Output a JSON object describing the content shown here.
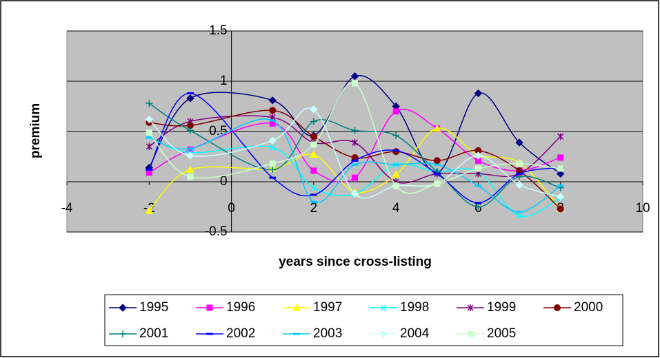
{
  "chart_data": {
    "type": "scatter-smooth",
    "x_label": "years since cross-listing",
    "y_label": "premium",
    "x": [
      -2,
      -1,
      1,
      2,
      3,
      4,
      5,
      6,
      7,
      8
    ],
    "xlim": [
      -4,
      10
    ],
    "xticks": [
      -4,
      -2,
      0,
      2,
      4,
      6,
      8,
      10
    ],
    "ylim": [
      -0.5,
      1.5
    ],
    "yticks": [
      -0.5,
      0,
      0.5,
      1,
      1.5
    ],
    "grid": true,
    "legend": "bottom",
    "series": [
      {
        "name": "1995",
        "color": "#000080",
        "marker": "diamond",
        "values": [
          0.14,
          0.83,
          0.81,
          0.46,
          1.05,
          0.75,
          0.09,
          0.88,
          0.39,
          0.08
        ]
      },
      {
        "name": "1996",
        "color": "#FF00FF",
        "marker": "square",
        "values": [
          0.09,
          0.32,
          0.58,
          0.11,
          0.04,
          0.7,
          0.53,
          0.21,
          0.11,
          0.24
        ]
      },
      {
        "name": "1997",
        "color": "#FFFF00",
        "marker": "triangle",
        "values": [
          -0.29,
          0.12,
          0.13,
          0.27,
          -0.1,
          0.07,
          0.53,
          0.27,
          0.19,
          -0.27
        ]
      },
      {
        "name": "1998",
        "color": "#00FFFF",
        "marker": "x",
        "values": [
          0.45,
          0.29,
          0.34,
          -0.06,
          -0.12,
          0.17,
          0.1,
          0.1,
          -0.34,
          -0.16
        ]
      },
      {
        "name": "1999",
        "color": "#800080",
        "marker": "asterisk",
        "values": [
          0.35,
          0.6,
          0.64,
          0.39,
          0.39,
          0.0,
          0.08,
          0.08,
          0.08,
          0.45
        ]
      },
      {
        "name": "2000",
        "color": "#800000",
        "marker": "circle",
        "values": [
          0.59,
          0.56,
          0.71,
          0.45,
          0.24,
          0.3,
          0.21,
          0.31,
          0.11,
          -0.27
        ]
      },
      {
        "name": "2001",
        "color": "#008080",
        "marker": "plus",
        "values": [
          0.78,
          0.51,
          0.12,
          0.6,
          0.51,
          0.46,
          0.1,
          -0.25,
          0.05,
          -0.06
        ]
      },
      {
        "name": "2002",
        "color": "#0000FF",
        "marker": "dash",
        "values": [
          0.12,
          0.88,
          0.04,
          -0.13,
          0.21,
          0.31,
          0.08,
          -0.21,
          0.08,
          0.14
        ]
      },
      {
        "name": "2003",
        "color": "#00CCFF",
        "marker": "dash",
        "values": [
          0.44,
          0.33,
          0.61,
          -0.2,
          0.17,
          0.17,
          0.17,
          -0.04,
          -0.3,
          -0.04
        ]
      },
      {
        "name": "2004",
        "color": "#CCFFFF",
        "marker": "diamond",
        "values": [
          0.62,
          0.26,
          0.41,
          0.72,
          -0.12,
          -0.04,
          -0.02,
          0.26,
          -0.03,
          -0.15
        ]
      },
      {
        "name": "2005",
        "color": "#CCFFCC",
        "marker": "square",
        "values": [
          0.49,
          0.05,
          0.18,
          0.37,
          0.98,
          -0.04,
          -0.02,
          0.13,
          0.18,
          0.13
        ]
      }
    ]
  }
}
